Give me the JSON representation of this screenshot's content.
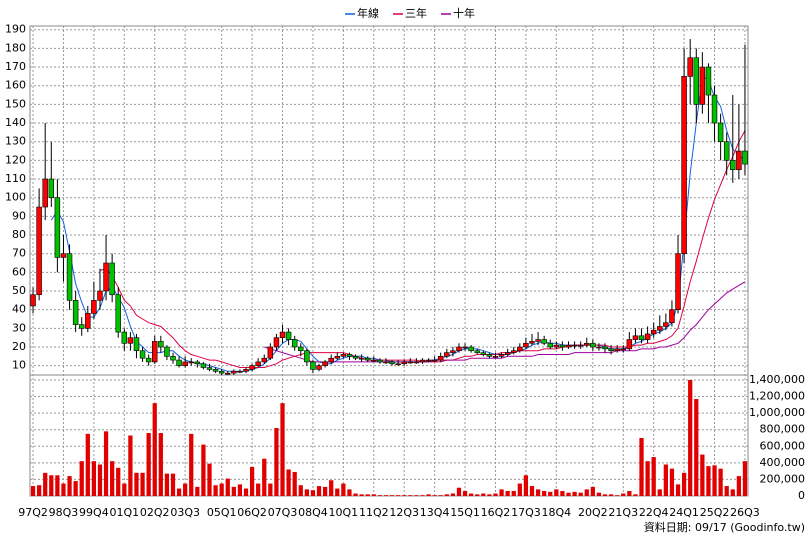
{
  "chart_data": {
    "type": "candlestick",
    "categories": [
      "97Q2",
      null,
      null,
      null,
      null,
      "98Q3",
      null,
      null,
      null,
      null,
      "99Q4",
      null,
      null,
      null,
      null,
      "01Q1",
      null,
      null,
      null,
      null,
      "02Q2",
      null,
      null,
      null,
      null,
      "03Q3",
      null,
      null,
      null,
      null,
      null,
      "05Q1",
      null,
      null,
      null,
      null,
      "06Q2",
      null,
      null,
      null,
      null,
      "07Q3",
      null,
      null,
      null,
      null,
      "08Q4",
      null,
      null,
      null,
      null,
      "10Q1",
      null,
      null,
      null,
      null,
      "11Q2",
      null,
      null,
      null,
      null,
      "12Q3",
      null,
      null,
      null,
      null,
      "13Q4",
      null,
      null,
      null,
      null,
      "15Q1",
      null,
      null,
      null,
      null,
      "16Q2",
      null,
      null,
      null,
      null,
      "17Q3",
      null,
      null,
      null,
      null,
      "18Q4",
      null,
      null,
      null,
      null,
      null,
      "20Q2",
      null,
      null,
      null,
      null,
      "21Q3",
      null,
      null,
      null,
      null,
      "22Q4",
      null,
      null,
      null,
      null,
      "24Q1",
      null,
      null,
      null,
      null,
      "25Q2",
      null,
      null,
      null,
      null,
      "26Q3"
    ],
    "open": [
      42,
      48,
      95,
      110,
      100,
      68,
      70,
      45,
      32,
      30,
      38,
      45,
      50,
      65,
      48,
      28,
      22,
      25,
      18,
      14,
      12,
      23,
      20,
      15,
      13,
      10,
      12,
      12,
      11,
      9,
      8,
      7,
      6,
      6,
      7,
      7,
      8,
      10,
      12,
      14,
      20,
      25,
      28,
      24,
      20,
      18,
      12,
      8,
      10,
      12,
      14,
      15,
      16,
      15,
      14,
      14,
      13,
      13,
      12,
      12,
      11,
      11,
      12,
      12,
      12,
      13,
      13,
      13,
      15,
      17,
      18,
      20,
      20,
      18,
      17,
      16,
      15,
      15,
      16,
      17,
      18,
      20,
      22,
      23,
      24,
      22,
      20,
      21,
      20,
      21,
      21,
      21,
      22,
      20,
      20,
      19,
      18,
      19,
      19,
      24,
      26,
      24,
      27,
      29,
      31,
      33,
      40,
      70,
      165,
      175,
      150,
      170,
      155,
      140,
      130,
      120,
      115,
      125
    ],
    "high": [
      52,
      105,
      140,
      130,
      110,
      80,
      75,
      50,
      36,
      42,
      55,
      62,
      80,
      70,
      52,
      30,
      28,
      27,
      20,
      16,
      26,
      26,
      21,
      17,
      15,
      15,
      14,
      13,
      12,
      11,
      9,
      8,
      7,
      8,
      8,
      9,
      11,
      14,
      16,
      22,
      27,
      32,
      30,
      26,
      22,
      19,
      13,
      11,
      13,
      16,
      17,
      17,
      17,
      16,
      16,
      15,
      15,
      14,
      14,
      13,
      13,
      13,
      14,
      14,
      14,
      14,
      15,
      17,
      19,
      20,
      22,
      22,
      21,
      19,
      18,
      17,
      17,
      17,
      19,
      20,
      22,
      25,
      27,
      28,
      26,
      24,
      23,
      23,
      23,
      23,
      23,
      25,
      24,
      22,
      22,
      21,
      21,
      21,
      28,
      30,
      30,
      31,
      33,
      37,
      38,
      45,
      80,
      180,
      185,
      180,
      178,
      172,
      160,
      145,
      135,
      155,
      150,
      182
    ],
    "low": [
      38,
      45,
      88,
      95,
      60,
      55,
      40,
      28,
      26,
      28,
      35,
      40,
      45,
      44,
      25,
      18,
      18,
      14,
      12,
      10,
      11,
      17,
      13,
      11,
      9,
      9,
      10,
      9,
      8,
      7,
      6,
      5,
      5,
      5,
      6,
      6,
      7,
      9,
      11,
      13,
      18,
      22,
      21,
      18,
      15,
      10,
      6,
      7,
      9,
      11,
      13,
      14,
      13,
      13,
      12,
      12,
      12,
      11,
      11,
      10,
      10,
      10,
      11,
      11,
      11,
      12,
      12,
      12,
      14,
      15,
      17,
      18,
      17,
      16,
      15,
      14,
      14,
      14,
      15,
      16,
      17,
      19,
      21,
      21,
      21,
      19,
      19,
      18,
      19,
      19,
      19,
      20,
      18,
      18,
      17,
      16,
      17,
      17,
      18,
      22,
      22,
      22,
      25,
      27,
      29,
      31,
      38,
      65,
      150,
      140,
      145,
      140,
      130,
      120,
      112,
      108,
      110,
      112
    ],
    "close": [
      48,
      95,
      110,
      100,
      68,
      70,
      45,
      32,
      30,
      38,
      45,
      50,
      65,
      48,
      28,
      22,
      25,
      18,
      14,
      12,
      23,
      20,
      15,
      13,
      10,
      12,
      12,
      11,
      9,
      8,
      7,
      6,
      6,
      7,
      7,
      8,
      10,
      12,
      14,
      20,
      25,
      28,
      24,
      20,
      18,
      12,
      8,
      10,
      12,
      14,
      15,
      16,
      15,
      14,
      14,
      13,
      13,
      12,
      12,
      11,
      11,
      12,
      12,
      12,
      13,
      13,
      13,
      15,
      17,
      18,
      20,
      20,
      18,
      17,
      16,
      15,
      15,
      16,
      17,
      18,
      20,
      22,
      23,
      24,
      22,
      20,
      21,
      20,
      21,
      21,
      21,
      22,
      20,
      20,
      19,
      18,
      19,
      19,
      24,
      26,
      24,
      27,
      29,
      31,
      33,
      40,
      70,
      165,
      175,
      150,
      170,
      155,
      140,
      130,
      120,
      115,
      125,
      118
    ],
    "up_color": "#ff0000",
    "down_color": "#00c000",
    "series": [
      {
        "name": "年線",
        "color": "#1060e0",
        "values": [
          null,
          null,
          null,
          88,
          93,
          87,
          71,
          54,
          44,
          36,
          36,
          41,
          50,
          52,
          47,
          41,
          31,
          23,
          20,
          17,
          17,
          17,
          18,
          18,
          15,
          13,
          12,
          11,
          11,
          10,
          9,
          8,
          7,
          7,
          7,
          7,
          8,
          9,
          11,
          14,
          18,
          22,
          24,
          24,
          23,
          19,
          15,
          12,
          11,
          11,
          13,
          14,
          15,
          15,
          15,
          14,
          14,
          13,
          13,
          12,
          12,
          12,
          12,
          12,
          12,
          13,
          13,
          14,
          15,
          16,
          18,
          19,
          19,
          19,
          18,
          17,
          16,
          16,
          16,
          17,
          18,
          19,
          21,
          22,
          23,
          22,
          22,
          21,
          21,
          21,
          21,
          21,
          21,
          21,
          20,
          19,
          19,
          19,
          20,
          22,
          23,
          25,
          27,
          28,
          30,
          33,
          43,
          77,
          113,
          140,
          165,
          163,
          154,
          149,
          136,
          126,
          123,
          120
        ]
      },
      {
        "name": "三年",
        "color": "#e00040",
        "values": [
          null,
          null,
          null,
          null,
          null,
          null,
          null,
          null,
          null,
          null,
          null,
          61,
          62,
          58,
          52,
          45,
          42,
          37,
          35,
          33,
          32,
          31,
          28,
          25,
          21,
          18,
          16,
          15,
          14,
          13,
          13,
          12,
          11,
          10,
          9,
          9,
          9,
          9,
          9,
          10,
          11,
          13,
          14,
          15,
          16,
          17,
          17,
          17,
          17,
          17,
          17,
          17,
          16,
          15,
          14,
          13,
          13,
          13,
          13,
          13,
          13,
          13,
          13,
          13,
          12,
          12,
          12,
          12,
          13,
          13,
          14,
          15,
          15,
          16,
          16,
          16,
          16,
          17,
          17,
          17,
          18,
          18,
          18,
          18,
          19,
          19,
          19,
          20,
          20,
          21,
          21,
          21,
          21,
          21,
          21,
          20,
          20,
          20,
          20,
          21,
          21,
          22,
          22,
          23,
          24,
          26,
          30,
          42,
          55,
          66,
          78,
          89,
          99,
          107,
          115,
          122,
          130,
          136
        ]
      },
      {
        "name": "十年",
        "color": "#a000a0",
        "values": [
          null,
          null,
          null,
          null,
          null,
          null,
          null,
          null,
          null,
          null,
          null,
          null,
          null,
          null,
          null,
          null,
          null,
          null,
          null,
          null,
          null,
          null,
          null,
          null,
          null,
          null,
          null,
          null,
          null,
          null,
          null,
          null,
          null,
          null,
          null,
          null,
          null,
          null,
          20,
          19,
          18,
          17,
          16,
          15,
          14,
          13,
          12,
          12,
          12,
          12,
          12,
          12,
          12,
          12,
          12,
          12,
          12,
          12,
          12,
          12,
          12,
          12,
          12,
          12,
          12,
          12,
          13,
          13,
          13,
          13,
          13,
          13,
          14,
          14,
          14,
          14,
          14,
          14,
          15,
          15,
          15,
          15,
          15,
          16,
          16,
          16,
          16,
          16,
          16,
          17,
          17,
          17,
          17,
          17,
          17,
          17,
          18,
          18,
          18,
          18,
          19,
          19,
          19,
          20,
          20,
          21,
          22,
          25,
          29,
          32,
          36,
          40,
          43,
          46,
          49,
          51,
          53,
          55
        ]
      }
    ],
    "ylim": [
      5,
      192
    ],
    "yticks": [
      10,
      20,
      30,
      40,
      50,
      60,
      70,
      80,
      90,
      100,
      110,
      120,
      130,
      140,
      150,
      160,
      170,
      180,
      190
    ],
    "volume": {
      "color": "#e00000",
      "ylim": [
        0,
        1460000
      ],
      "values": [
        120000,
        130000,
        280000,
        250000,
        250000,
        150000,
        240000,
        180000,
        420000,
        750000,
        420000,
        380000,
        780000,
        420000,
        340000,
        150000,
        730000,
        280000,
        280000,
        760000,
        1120000,
        760000,
        270000,
        270000,
        90000,
        150000,
        750000,
        110000,
        620000,
        390000,
        130000,
        150000,
        210000,
        110000,
        140000,
        90000,
        350000,
        150000,
        450000,
        150000,
        820000,
        1120000,
        320000,
        290000,
        130000,
        80000,
        70000,
        120000,
        110000,
        190000,
        90000,
        150000,
        80000,
        30000,
        20000,
        20000,
        20000,
        10000,
        10000,
        10000,
        10000,
        10000,
        10000,
        10000,
        10000,
        20000,
        10000,
        10000,
        20000,
        30000,
        100000,
        60000,
        30000,
        20000,
        30000,
        20000,
        30000,
        80000,
        60000,
        60000,
        150000,
        250000,
        120000,
        80000,
        60000,
        50000,
        80000,
        60000,
        40000,
        50000,
        40000,
        80000,
        110000,
        40000,
        20000,
        20000,
        10000,
        30000,
        60000,
        20000,
        700000,
        420000,
        470000,
        80000,
        380000,
        330000,
        140000,
        280000,
        1400000,
        1170000,
        500000,
        360000,
        370000,
        330000,
        120000,
        80000,
        240000,
        420000
      ],
      "yticks": [
        0,
        {
          "value": 200000,
          "label": "200,000"
        },
        {
          "value": 400000,
          "label": "400,000"
        },
        {
          "value": 600000,
          "label": "600,000"
        },
        {
          "value": 800000,
          "label": "800,000"
        },
        {
          "value": 1000000,
          "label": "1,000,000"
        },
        {
          "value": 1200000,
          "label": "1,200,000"
        },
        {
          "value": 1400000,
          "label": "1,400,000"
        }
      ]
    },
    "grid": true,
    "legend": "top",
    "note": "資料日期: 09/17 (Goodinfo.tw)"
  }
}
